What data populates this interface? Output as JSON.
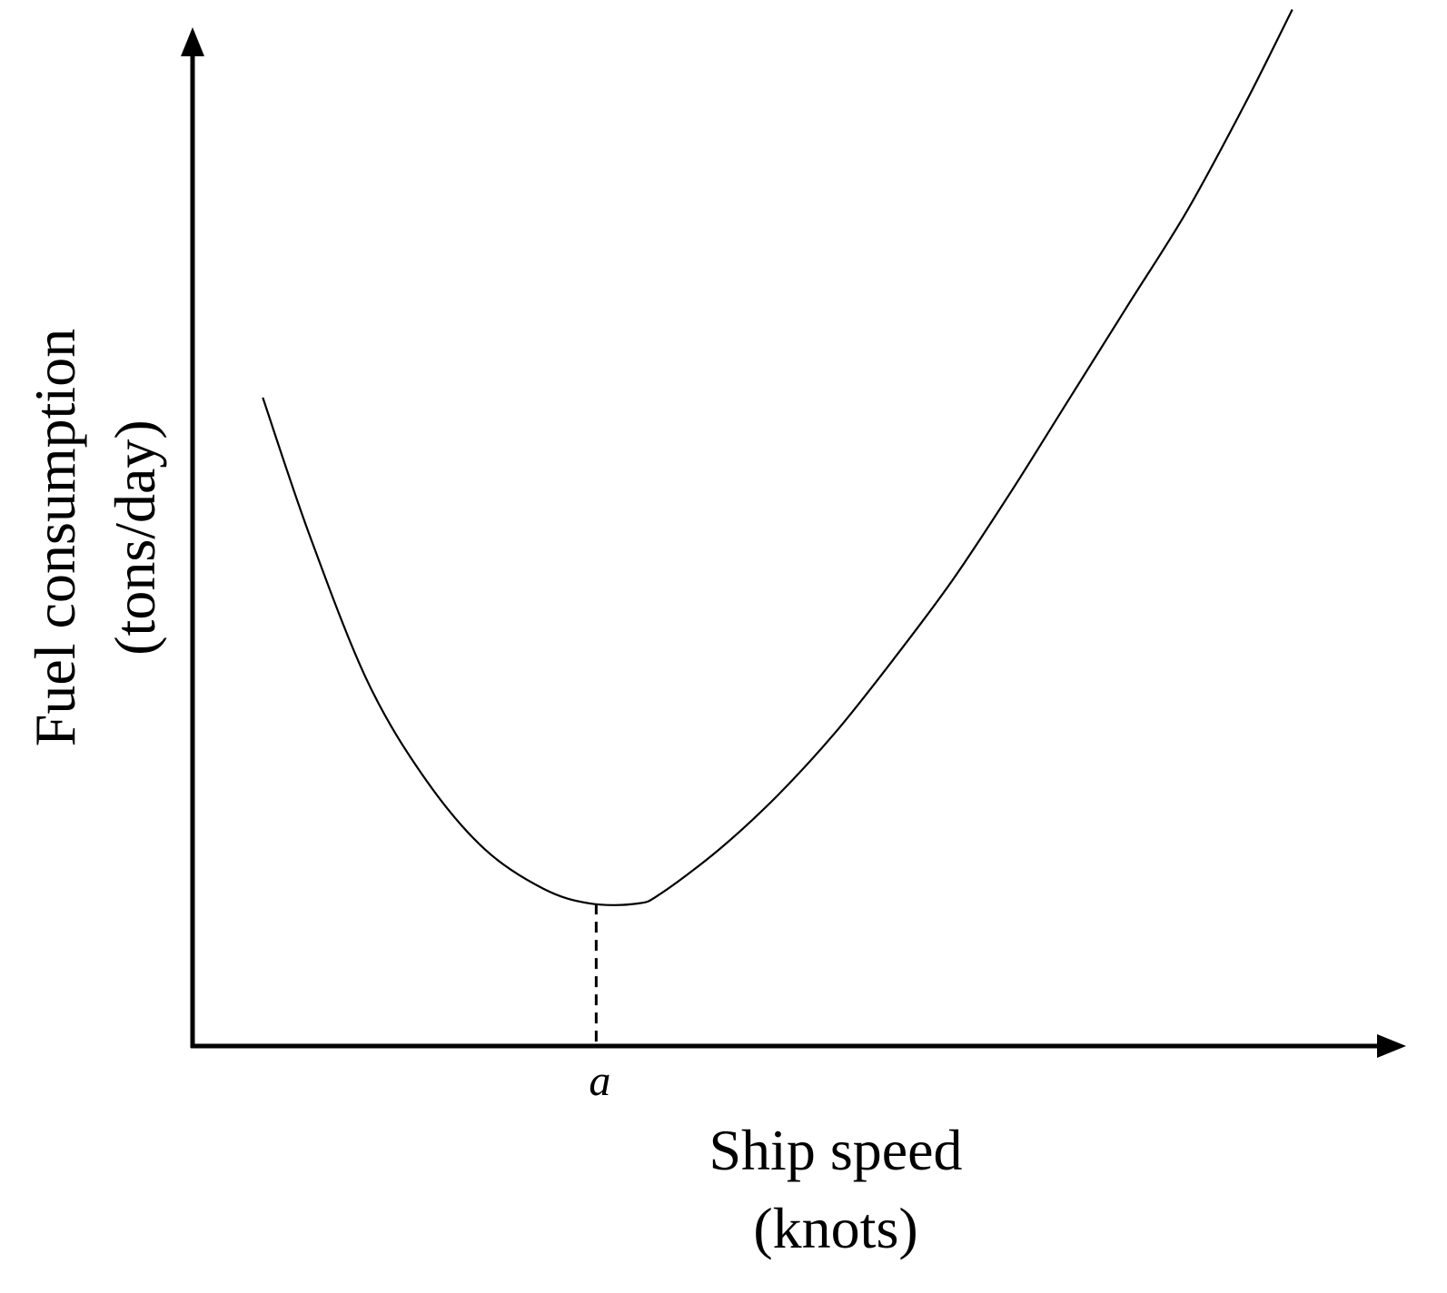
{
  "chart_data": {
    "type": "line",
    "title": "",
    "xlabel": "Ship speed",
    "xlabel_unit": "(knots)",
    "ylabel": "Fuel consumption",
    "ylabel_unit": "(tons/day)",
    "x_tick_labels": [
      "a"
    ],
    "axis_ticks_numeric": false,
    "grid": false,
    "legend": "none",
    "xlim": [
      0,
      10
    ],
    "ylim": [
      0,
      10
    ],
    "series": [
      {
        "x": [
          0.6,
          1.0,
          1.5,
          2.0,
          2.5,
          3.0,
          3.4,
          3.8,
          4.0,
          4.5,
          5.0,
          5.5,
          6.0,
          6.5,
          7.0,
          7.5,
          8.0,
          8.5,
          9.0,
          9.4
        ],
        "values": [
          6.6,
          5.2,
          3.7,
          2.7,
          2.0,
          1.6,
          1.45,
          1.45,
          1.55,
          2.0,
          2.55,
          3.2,
          3.95,
          4.75,
          5.65,
          6.6,
          7.55,
          8.5,
          9.6,
          10.55
        ]
      }
    ],
    "min_marker": {
      "label": "a",
      "x": 3.45,
      "y": 1.45,
      "style": "dashed"
    },
    "colors": {
      "axis": "#000000",
      "line": "#000000"
    }
  }
}
